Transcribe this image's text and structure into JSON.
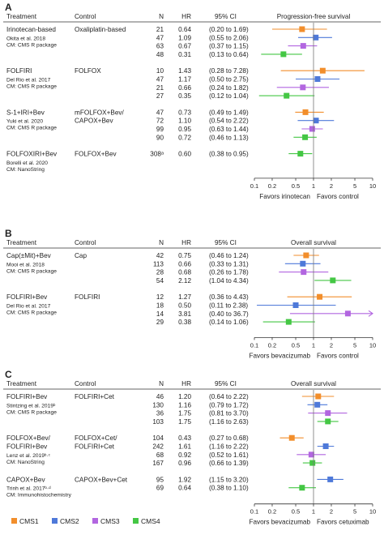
{
  "colors": {
    "CMS1": "#f28e2b",
    "CMS2": "#4e79d9",
    "CMS3": "#b266e0",
    "CMS4": "#44c744",
    "zero": "#888888"
  },
  "headers": {
    "treatment": "Treatment",
    "control": "Control",
    "n": "N",
    "hr": "HR",
    "ci": "95% CI"
  },
  "x_ticks": [
    "0.1",
    "0.2",
    "0.5",
    "1",
    "2",
    "5",
    "10"
  ],
  "legend": {
    "items": [
      {
        "label": "CMS1",
        "color": "#f28e2b"
      },
      {
        "label": "CMS2",
        "color": "#4e79d9"
      },
      {
        "label": "CMS3",
        "color": "#b266e0"
      },
      {
        "label": "CMS4",
        "color": "#44c744"
      }
    ]
  },
  "chart_data": [
    {
      "type": "forest",
      "panel": "A",
      "title": "Progression-free survival",
      "x_scale": "log",
      "xlim": [
        0.1,
        10
      ],
      "favors_left": "Favors irinotecan",
      "favors_right": "Favors control",
      "groups": [
        {
          "treatment": "Irinotecan-based",
          "study": "Okita et al. 2018",
          "cm": "CM: CMS R package",
          "control": "Oxaliplatin-based",
          "rows": [
            {
              "cms": "CMS1",
              "n": "21",
              "hr": 0.64,
              "ci": "(0.20 to 1.69)",
              "lo": 0.2,
              "hi": 1.69
            },
            {
              "cms": "CMS2",
              "n": "47",
              "hr": 1.09,
              "ci": "(0.55 to 2.06)",
              "lo": 0.55,
              "hi": 2.06
            },
            {
              "cms": "CMS3",
              "n": "63",
              "hr": 0.67,
              "ci": "(0.37 to 1.15)",
              "lo": 0.37,
              "hi": 1.15
            },
            {
              "cms": "CMS4",
              "n": "48",
              "hr": 0.31,
              "ci": "(0.13 to 0.64)",
              "lo": 0.13,
              "hi": 0.64
            }
          ]
        },
        {
          "treatment": "FOLFIRI",
          "study": "Del Rio et al. 2017",
          "cm": "CM: CMS R package",
          "control": "FOLFOX",
          "rows": [
            {
              "cms": "CMS1",
              "n": "10",
              "hr": 1.43,
              "ci": "(0.28 to 7.28)",
              "lo": 0.28,
              "hi": 7.28
            },
            {
              "cms": "CMS2",
              "n": "47",
              "hr": 1.17,
              "ci": "(0.50 to 2.75)",
              "lo": 0.5,
              "hi": 2.75
            },
            {
              "cms": "CMS3",
              "n": "21",
              "hr": 0.66,
              "ci": "(0.24 to 1.82)",
              "lo": 0.24,
              "hi": 1.82
            },
            {
              "cms": "CMS4",
              "n": "27",
              "hr": 0.35,
              "ci": "(0.12 to 1.04)",
              "lo": 0.12,
              "hi": 1.04
            }
          ]
        },
        {
          "treatment": "S-1+IRI+Bev",
          "study": "Yuki et al. 2020",
          "cm": "CM: CMS R package",
          "control": "mFOLFOX+Bev/",
          "control2": "CAPOX+Bev",
          "rows": [
            {
              "cms": "CMS1",
              "n": "47",
              "hr": 0.73,
              "ci": "(0.49 to 1.49)",
              "lo": 0.49,
              "hi": 1.49
            },
            {
              "cms": "CMS2",
              "n": "72",
              "hr": 1.1,
              "ci": "(0.54 to 2.22)",
              "lo": 0.54,
              "hi": 2.22
            },
            {
              "cms": "CMS3",
              "n": "99",
              "hr": 0.95,
              "ci": "(0.63 to 1.44)",
              "lo": 0.63,
              "hi": 1.44
            },
            {
              "cms": "CMS4",
              "n": "90",
              "hr": 0.72,
              "ci": "(0.46 to 1.13)",
              "lo": 0.46,
              "hi": 1.13
            }
          ]
        },
        {
          "treatment": "FOLFOXIRI+Bev",
          "study": "Borelli et al. 2020",
          "cm": "CM: NanoString",
          "control": "FOLFOX+Bev",
          "rows": [
            {
              "cms": "CMS4",
              "n": "308ᵃ",
              "hr": 0.6,
              "ci": "(0.38 to 0.95)",
              "lo": 0.38,
              "hi": 0.95
            }
          ]
        }
      ]
    },
    {
      "type": "forest",
      "panel": "B",
      "title": "Overall survival",
      "x_scale": "log",
      "xlim": [
        0.1,
        10
      ],
      "favors_left": "Favors bevacizumab",
      "favors_right": "Favors control",
      "groups": [
        {
          "treatment": "Cap(±Mit)+Bev",
          "study": "Mooi et al. 2018",
          "cm": "CM: CMS R package",
          "control": "Cap",
          "rows": [
            {
              "cms": "CMS1",
              "n": "42",
              "hr": 0.75,
              "ci": "(0.46 to 1.24)",
              "lo": 0.46,
              "hi": 1.24
            },
            {
              "cms": "CMS2",
              "n": "113",
              "hr": 0.66,
              "ci": "(0.33 to 1.31)",
              "lo": 0.33,
              "hi": 1.31
            },
            {
              "cms": "CMS3",
              "n": "28",
              "hr": 0.68,
              "ci": "(0.26 to 1.78)",
              "lo": 0.26,
              "hi": 1.78
            },
            {
              "cms": "CMS4",
              "n": "54",
              "hr": 2.12,
              "ci": "(1.04 to 4.34)",
              "lo": 1.04,
              "hi": 4.34
            }
          ]
        },
        {
          "treatment": "FOLFIRI+Bev",
          "study": "Del Rio et al. 2017",
          "cm": "CM: CMS R package",
          "control": "FOLFIRI",
          "rows": [
            {
              "cms": "CMS1",
              "n": "12",
              "hr": 1.27,
              "ci": "(0.36 to 4.43)",
              "lo": 0.36,
              "hi": 4.43
            },
            {
              "cms": "CMS2",
              "n": "18",
              "hr": 0.5,
              "ci": "(0.11 to 2.38)",
              "lo": 0.11,
              "hi": 2.38
            },
            {
              "cms": "CMS3",
              "n": "14",
              "hr": 3.81,
              "ci": "(0.40 to 36.7)",
              "lo": 0.4,
              "hi": 36.7
            },
            {
              "cms": "CMS4",
              "n": "29",
              "hr": 0.38,
              "ci": "(0.14 to 1.06)",
              "lo": 0.14,
              "hi": 1.06
            }
          ]
        }
      ]
    },
    {
      "type": "forest",
      "panel": "C",
      "title": "Overall survival",
      "x_scale": "log",
      "xlim": [
        0.1,
        10
      ],
      "favors_left": "Favors bevacizumab",
      "favors_right": "Favors cetuximab",
      "groups": [
        {
          "treatment": "FOLFIRI+Bev",
          "study": "Stintzing et al. 2019ᵇ",
          "cm": "CM: CMS R package",
          "control": "FOLFIRI+Cet",
          "rows": [
            {
              "cms": "CMS1",
              "n": "46",
              "hr": 1.2,
              "ci": "(0.64 to 2.22)",
              "lo": 0.64,
              "hi": 2.22
            },
            {
              "cms": "CMS2",
              "n": "130",
              "hr": 1.16,
              "ci": "(0.79 to 1.72)",
              "lo": 0.79,
              "hi": 1.72
            },
            {
              "cms": "CMS3",
              "n": "36",
              "hr": 1.75,
              "ci": "(0.81 to 3.70)",
              "lo": 0.81,
              "hi": 3.7
            },
            {
              "cms": "CMS4",
              "n": "103",
              "hr": 1.75,
              "ci": "(1.16 to 2.63)",
              "lo": 1.16,
              "hi": 2.63
            }
          ]
        },
        {
          "treatment": "FOLFOX+Bev/",
          "treatment2": "FOLFIRI+Bev",
          "study": "Lenz et al. 2019ᵇ·ᶜ",
          "cm": "CM: NanoString",
          "control": "FOLFOX+Cet/",
          "control2": "FOLFIRI+Cet",
          "rows": [
            {
              "cms": "CMS1",
              "n": "104",
              "hr": 0.43,
              "ci": "(0.27 to 0.68)",
              "lo": 0.27,
              "hi": 0.68
            },
            {
              "cms": "CMS2",
              "n": "242",
              "hr": 1.61,
              "ci": "(1.16 to 2.22)",
              "lo": 1.16,
              "hi": 2.22
            },
            {
              "cms": "CMS3",
              "n": "68",
              "hr": 0.92,
              "ci": "(0.52 to 1.61)",
              "lo": 0.52,
              "hi": 1.61
            },
            {
              "cms": "CMS4",
              "n": "167",
              "hr": 0.96,
              "ci": "(0.66 to 1.39)",
              "lo": 0.66,
              "hi": 1.39
            }
          ]
        },
        {
          "treatment": "CAPOX+Bev",
          "study": "Trinh et al. 2017ᵇ·ᵈ",
          "cm": "CM: Immunohistochemistry",
          "control": "CAPOX+Bev+Cet",
          "rows": [
            {
              "cms": "CMS2",
              "n": "95",
              "hr": 1.92,
              "ci": "(1.15 to 3.20)",
              "lo": 1.15,
              "hi": 3.2
            },
            {
              "cms": "CMS4",
              "n": "69",
              "hr": 0.64,
              "ci": "(0.38 to 1.10)",
              "lo": 0.38,
              "hi": 1.1
            }
          ]
        }
      ]
    }
  ]
}
